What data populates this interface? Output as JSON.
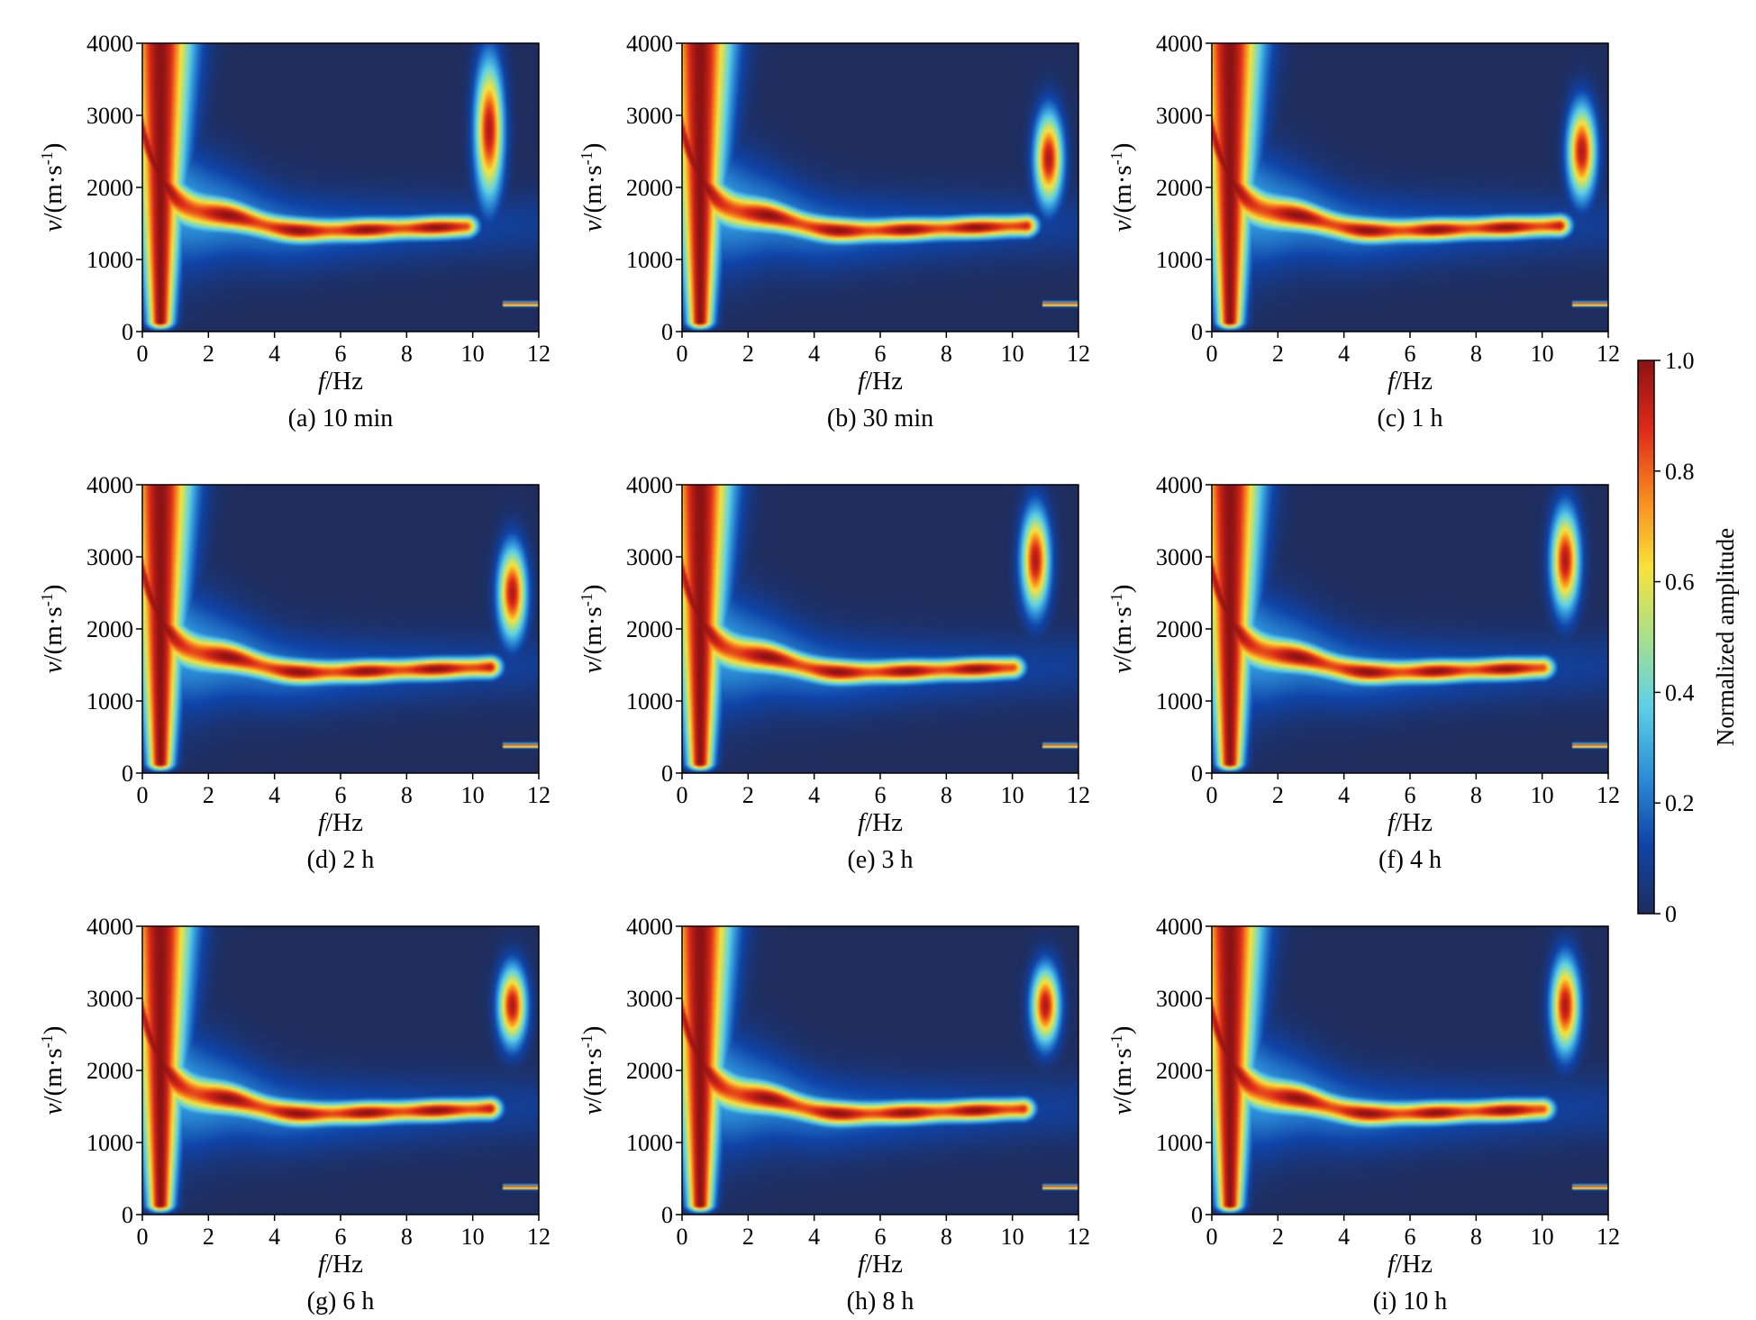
{
  "chart_data": {
    "type": "heatmap",
    "layout": "3x3 grid of panels",
    "xlabel": {
      "italic": "f",
      "rest": "/Hz"
    },
    "ylabel": {
      "italic": "v",
      "rest": "/(m·s",
      "sup": "-1",
      "close": ")"
    },
    "x_ticks": [
      "0",
      "2",
      "4",
      "6",
      "8",
      "10",
      "12"
    ],
    "y_ticks": [
      "0",
      "1000",
      "2000",
      "3000",
      "4000"
    ],
    "xlim": [
      0,
      12
    ],
    "ylim": [
      0,
      4000
    ],
    "colorbar": {
      "title": "Normalized amplitude",
      "ticks": [
        "0",
        "0.2",
        "0.4",
        "0.6",
        "0.8",
        "1.0"
      ],
      "range": [
        0,
        1
      ],
      "colors": [
        "#1f2d5e",
        "#0f44a8",
        "#2d8fd8",
        "#5fd0e6",
        "#a8e08c",
        "#f7e23a",
        "#f78b1e",
        "#de2a1a",
        "#8c1313"
      ]
    },
    "panels": [
      {
        "caption": "(a) 10 min",
        "high_band_fmin": 9.8,
        "high_band_vmin": 1900,
        "high_band_vmax": 3700
      },
      {
        "caption": "(b) 30 min",
        "high_band_fmin": 10.4,
        "high_band_vmin": 1800,
        "high_band_vmax": 3000
      },
      {
        "caption": "(c) 1 h",
        "high_band_fmin": 10.5,
        "high_band_vmin": 1900,
        "high_band_vmax": 3100
      },
      {
        "caption": "(d) 2 h",
        "high_band_fmin": 10.5,
        "high_band_vmin": 1900,
        "high_band_vmax": 3100
      },
      {
        "caption": "(e) 3 h",
        "high_band_fmin": 10.0,
        "high_band_vmin": 2300,
        "high_band_vmax": 3600
      },
      {
        "caption": "(f) 4 h",
        "high_band_fmin": 10.0,
        "high_band_vmin": 2300,
        "high_band_vmax": 3600
      },
      {
        "caption": "(g) 6 h",
        "high_band_fmin": 10.5,
        "high_band_vmin": 2400,
        "high_band_vmax": 3400
      },
      {
        "caption": "(h) 8 h",
        "high_band_fmin": 10.3,
        "high_band_vmin": 2400,
        "high_band_vmax": 3400
      },
      {
        "caption": "(i) 10 h",
        "high_band_fmin": 10.0,
        "high_band_vmin": 2300,
        "high_band_vmax": 3500
      }
    ]
  }
}
